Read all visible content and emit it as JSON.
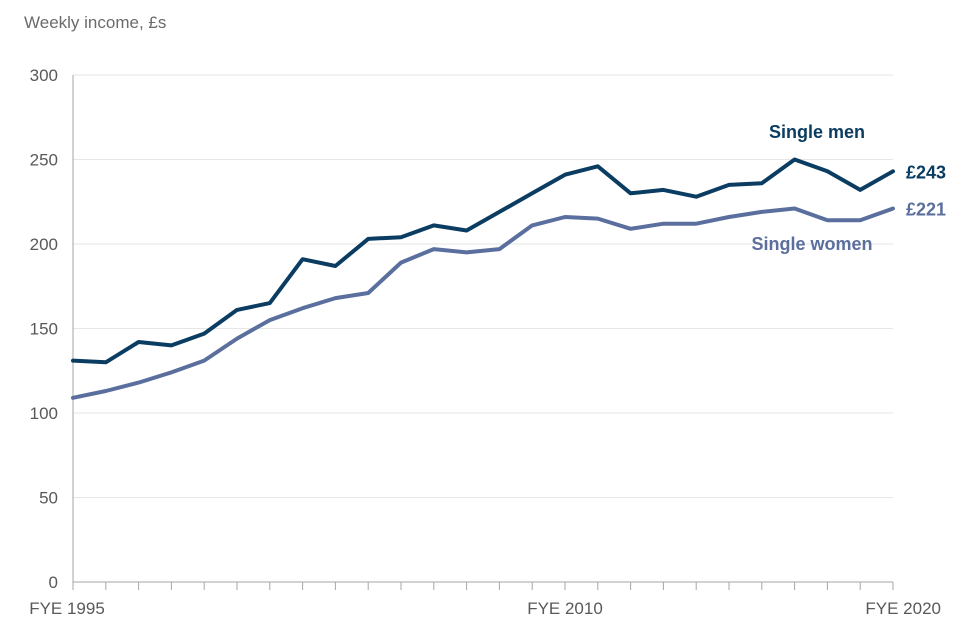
{
  "chart_data": {
    "type": "line",
    "title": "",
    "ylabel": "Weekly income, £s",
    "xlabel": "",
    "ylim": [
      0,
      300
    ],
    "yticks": [
      0,
      50,
      100,
      150,
      200,
      250,
      300
    ],
    "x": [
      "FYE 1995",
      "FYE 1996",
      "FYE 1997",
      "FYE 1998",
      "FYE 1999",
      "FYE 2000",
      "FYE 2001",
      "FYE 2002",
      "FYE 2003",
      "FYE 2004",
      "FYE 2005",
      "FYE 2006",
      "FYE 2007",
      "FYE 2008",
      "FYE 2009",
      "FYE 2010",
      "FYE 2011",
      "FYE 2012",
      "FYE 2013",
      "FYE 2014",
      "FYE 2015",
      "FYE 2016",
      "FYE 2017",
      "FYE 2018",
      "FYE 2019",
      "FYE 2020"
    ],
    "x_tick_labels": [
      {
        "index": 0,
        "label": "FYE 1995"
      },
      {
        "index": 15,
        "label": "FYE 2010"
      },
      {
        "index": 25,
        "label": "FYE 2020"
      }
    ],
    "series": [
      {
        "name": "Single men",
        "color": "#0b3c61",
        "values": [
          131,
          130,
          142,
          140,
          147,
          161,
          165,
          191,
          187,
          203,
          204,
          211,
          208,
          219,
          230,
          241,
          246,
          230,
          232,
          228,
          235,
          236,
          250,
          243,
          232,
          243
        ],
        "end_label": "£243"
      },
      {
        "name": "Single women",
        "color": "#5b6f9e",
        "values": [
          109,
          113,
          118,
          124,
          131,
          144,
          155,
          162,
          168,
          171,
          189,
          197,
          195,
          197,
          211,
          216,
          215,
          209,
          212,
          212,
          216,
          219,
          221,
          214,
          214,
          221
        ],
        "end_label": "£221"
      }
    ]
  }
}
